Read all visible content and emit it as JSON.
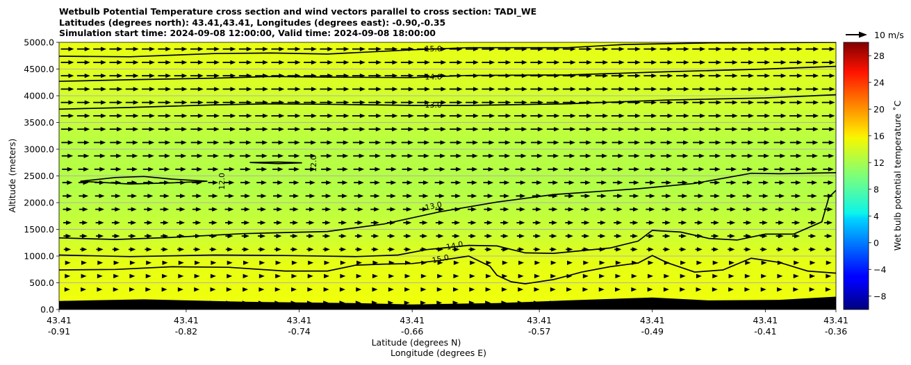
{
  "title_lines": [
    "Wetbulb Potential Temperature cross section and wind vectors parallel to cross section: TADI_WE",
    "Latitudes (degrees north): 43.41,43.41, Longitudes (degrees east): -0.90,-0.35",
    "Simulation start time: 2024-09-08 12:00:00, Valid time: 2024-09-08 18:00:00"
  ],
  "colors": {
    "field_low": "#ccff33",
    "field_mid": "#b3ff47",
    "field_high": "#f2ff0a",
    "terrain": "#000000",
    "grid": "#b0b0b0",
    "contour": "#000000"
  },
  "chart_data": {
    "type": "heatmap",
    "title": "Wetbulb Potential Temperature cross section and wind vectors parallel to cross section: TADI_WE",
    "ylabel": "Altitude (meters)",
    "xlabel_lines": [
      "Latitude (degrees N)",
      "Longitude (degrees E)"
    ],
    "ylim": [
      0,
      5000
    ],
    "yticks": [
      0,
      500,
      1000,
      1500,
      2000,
      2500,
      3000,
      3500,
      4000,
      4500,
      5000
    ],
    "ytick_labels": [
      "0.0",
      "500.0",
      "1000.0",
      "1500.0",
      "2000.0",
      "2500.0",
      "3000.0",
      "3500.0",
      "4000.0",
      "4500.0",
      "5000.0"
    ],
    "xlim": [
      -0.91,
      -0.36
    ],
    "xticks": [
      {
        "lat": "43.41",
        "lon": "-0.91",
        "x": -0.91
      },
      {
        "lat": "43.41",
        "lon": "-0.82",
        "x": -0.82
      },
      {
        "lat": "43.41",
        "lon": "-0.74",
        "x": -0.74
      },
      {
        "lat": "43.41",
        "lon": "-0.66",
        "x": -0.66
      },
      {
        "lat": "43.41",
        "lon": "-0.57",
        "x": -0.57
      },
      {
        "lat": "43.41",
        "lon": "-0.49",
        "x": -0.49
      },
      {
        "lat": "43.41",
        "lon": "-0.41",
        "x": -0.41
      },
      {
        "lat": "43.41",
        "lon": "-0.36",
        "x": -0.36
      }
    ],
    "grid": true,
    "colorbar": {
      "label": "Wet bulb potential temperature ˚C",
      "min": -10,
      "max": 30,
      "ticks": [
        -8,
        -4,
        0,
        4,
        8,
        12,
        16,
        20,
        24,
        28
      ],
      "tick_labels": [
        "−8",
        "−4",
        "0",
        "4",
        "8",
        "12",
        "16",
        "20",
        "24",
        "28"
      ]
    },
    "wind_reference": {
      "label": "10 m/s",
      "speed": 10
    },
    "wind": {
      "direction": "eastward",
      "speed_near_surface": 3,
      "speed_aloft": 9
    },
    "terrain_height_m": [
      [
        -0.91,
        160
      ],
      [
        -0.85,
        190
      ],
      [
        -0.78,
        145
      ],
      [
        -0.7,
        120
      ],
      [
        -0.66,
        95
      ],
      [
        -0.6,
        120
      ],
      [
        -0.55,
        170
      ],
      [
        -0.49,
        225
      ],
      [
        -0.45,
        170
      ],
      [
        -0.4,
        180
      ],
      [
        -0.36,
        240
      ]
    ],
    "contours": [
      {
        "level": 15.0,
        "label": "15.0",
        "label_at": [
          -0.645,
          4880
        ],
        "points": [
          [
            -0.91,
            4740
          ],
          [
            -0.86,
            4730
          ],
          [
            -0.8,
            4790
          ],
          [
            -0.76,
            4800
          ],
          [
            -0.72,
            4780
          ],
          [
            -0.66,
            4860
          ],
          [
            -0.62,
            4900
          ],
          [
            -0.55,
            4900
          ],
          [
            -0.51,
            4960
          ],
          [
            -0.45,
            4990
          ],
          [
            -0.36,
            5000
          ]
        ]
      },
      {
        "level": 14.0,
        "label": "14.0",
        "label_at": [
          -0.645,
          4360
        ],
        "points": [
          [
            -0.91,
            4270
          ],
          [
            -0.86,
            4300
          ],
          [
            -0.8,
            4330
          ],
          [
            -0.76,
            4360
          ],
          [
            -0.72,
            4350
          ],
          [
            -0.66,
            4340
          ],
          [
            -0.62,
            4380
          ],
          [
            -0.55,
            4390
          ],
          [
            -0.48,
            4450
          ],
          [
            -0.41,
            4500
          ],
          [
            -0.36,
            4550
          ]
        ]
      },
      {
        "level": 13.0,
        "label": "13.0",
        "label_at": [
          -0.645,
          3830
        ],
        "points": [
          [
            -0.91,
            3750
          ],
          [
            -0.86,
            3780
          ],
          [
            -0.8,
            3830
          ],
          [
            -0.76,
            3850
          ],
          [
            -0.72,
            3840
          ],
          [
            -0.66,
            3820
          ],
          [
            -0.62,
            3820
          ],
          [
            -0.55,
            3850
          ],
          [
            -0.48,
            3920
          ],
          [
            -0.41,
            3960
          ],
          [
            -0.36,
            4020
          ]
        ]
      },
      {
        "level": 13.0,
        "label": "13.0",
        "label_at": [
          -0.645,
          1940
        ],
        "points": [
          [
            -0.91,
            1340
          ],
          [
            -0.87,
            1310
          ],
          [
            -0.83,
            1350
          ],
          [
            -0.78,
            1420
          ],
          [
            -0.72,
            1460
          ],
          [
            -0.68,
            1600
          ],
          [
            -0.64,
            1830
          ],
          [
            -0.6,
            2010
          ],
          [
            -0.56,
            2150
          ],
          [
            -0.5,
            2260
          ],
          [
            -0.46,
            2360
          ],
          [
            -0.42,
            2550
          ],
          [
            -0.4,
            2540
          ],
          [
            -0.36,
            2560
          ]
        ]
      },
      {
        "level": 14.0,
        "label": "14.0",
        "label_at": [
          -0.63,
          1200
        ],
        "points": [
          [
            -0.91,
            1020
          ],
          [
            -0.86,
            990
          ],
          [
            -0.8,
            1020
          ],
          [
            -0.75,
            1010
          ],
          [
            -0.7,
            990
          ],
          [
            -0.67,
            1020
          ],
          [
            -0.65,
            1120
          ],
          [
            -0.62,
            1200
          ],
          [
            -0.6,
            1190
          ],
          [
            -0.58,
            1060
          ],
          [
            -0.56,
            1050
          ],
          [
            -0.52,
            1150
          ],
          [
            -0.5,
            1280
          ],
          [
            -0.49,
            1480
          ],
          [
            -0.47,
            1450
          ],
          [
            -0.45,
            1330
          ],
          [
            -0.43,
            1300
          ],
          [
            -0.41,
            1410
          ],
          [
            -0.39,
            1410
          ],
          [
            -0.37,
            1640
          ],
          [
            -0.365,
            2100
          ],
          [
            -0.36,
            2230
          ]
        ]
      },
      {
        "level": 15.0,
        "label": "15.0",
        "label_at": [
          -0.64,
          950
        ],
        "points": [
          [
            -0.91,
            740
          ],
          [
            -0.87,
            750
          ],
          [
            -0.83,
            800
          ],
          [
            -0.79,
            790
          ],
          [
            -0.75,
            720
          ],
          [
            -0.72,
            720
          ],
          [
            -0.7,
            830
          ],
          [
            -0.68,
            850
          ],
          [
            -0.66,
            860
          ],
          [
            -0.64,
            920
          ],
          [
            -0.62,
            1000
          ],
          [
            -0.605,
            810
          ],
          [
            -0.6,
            640
          ],
          [
            -0.59,
            520
          ],
          [
            -0.58,
            480
          ],
          [
            -0.56,
            560
          ],
          [
            -0.54,
            700
          ],
          [
            -0.52,
            800
          ],
          [
            -0.5,
            870
          ],
          [
            -0.49,
            1010
          ],
          [
            -0.48,
            880
          ],
          [
            -0.46,
            700
          ],
          [
            -0.44,
            740
          ],
          [
            -0.42,
            960
          ],
          [
            -0.4,
            880
          ],
          [
            -0.38,
            720
          ],
          [
            -0.36,
            680
          ]
        ]
      },
      {
        "level": 12.0,
        "label": "12.0",
        "label_at": [
          -0.795,
          2400
        ],
        "points": [
          [
            -0.895,
            2400
          ],
          [
            -0.87,
            2470
          ],
          [
            -0.85,
            2490
          ],
          [
            -0.83,
            2440
          ],
          [
            -0.805,
            2400
          ],
          [
            -0.83,
            2370
          ],
          [
            -0.86,
            2350
          ],
          [
            -0.895,
            2400
          ]
        ]
      },
      {
        "level": 12.0,
        "label": "12.0",
        "label_at": [
          -0.73,
          2730
        ],
        "points": [
          [
            -0.775,
            2750
          ],
          [
            -0.755,
            2760
          ],
          [
            -0.738,
            2745
          ],
          [
            -0.755,
            2730
          ],
          [
            -0.775,
            2750
          ]
        ]
      }
    ]
  }
}
